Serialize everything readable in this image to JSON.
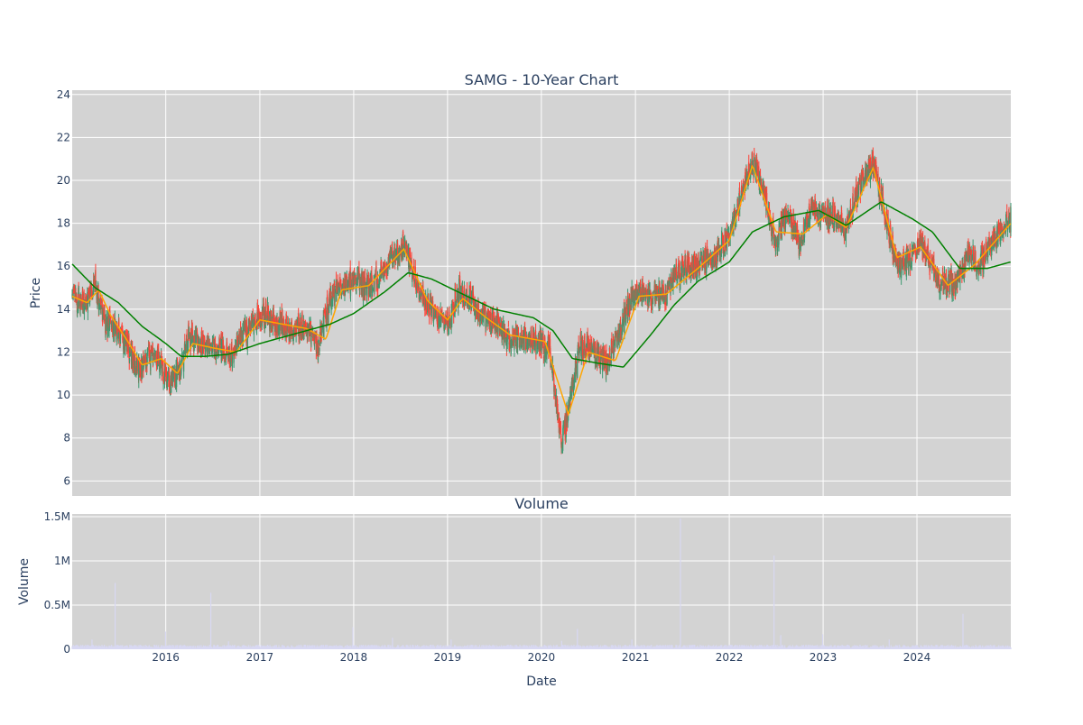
{
  "chart_data": [
    {
      "type": "candlestick",
      "title": "SAMG - 10-Year Chart",
      "ylabel": "Price",
      "ylim": [
        5.3,
        24.2
      ],
      "yticks": [
        6,
        8,
        10,
        12,
        14,
        16,
        18,
        20,
        22,
        24
      ],
      "x_range": [
        "2015-01-02",
        "2024-12-31"
      ],
      "xticks": [
        "2016",
        "2017",
        "2018",
        "2019",
        "2020",
        "2021",
        "2022",
        "2023",
        "2024"
      ],
      "increasing_color": "#3d9970",
      "decreasing_color": "#ff4136",
      "grid": true,
      "plot_background": "#d3d3d3",
      "close_anchors": [
        [
          "2015-01-02",
          14.6
        ],
        [
          "2015-02-15",
          14.2
        ],
        [
          "2015-04-01",
          15.1
        ],
        [
          "2015-05-15",
          13.3
        ],
        [
          "2015-07-15",
          12.8
        ],
        [
          "2015-09-15",
          11.2
        ],
        [
          "2015-11-15",
          12.0
        ],
        [
          "2016-01-15",
          10.6
        ],
        [
          "2016-03-01",
          11.4
        ],
        [
          "2016-04-01",
          12.8
        ],
        [
          "2016-06-01",
          12.3
        ],
        [
          "2016-08-01",
          12.1
        ],
        [
          "2016-09-15",
          11.8
        ],
        [
          "2016-10-15",
          12.6
        ],
        [
          "2016-12-01",
          13.2
        ],
        [
          "2017-01-15",
          13.8
        ],
        [
          "2017-03-01",
          13.4
        ],
        [
          "2017-05-01",
          13.0
        ],
        [
          "2017-07-01",
          13.2
        ],
        [
          "2017-08-15",
          12.3
        ],
        [
          "2017-10-01",
          14.6
        ],
        [
          "2017-12-01",
          15.3
        ],
        [
          "2018-01-15",
          15.2
        ],
        [
          "2018-03-01",
          15.0
        ],
        [
          "2018-04-15",
          15.6
        ],
        [
          "2018-06-01",
          16.4
        ],
        [
          "2018-07-15",
          17.0
        ],
        [
          "2018-09-01",
          15.4
        ],
        [
          "2018-10-15",
          14.2
        ],
        [
          "2018-12-01",
          13.7
        ],
        [
          "2019-01-01",
          13.2
        ],
        [
          "2019-02-15",
          14.8
        ],
        [
          "2019-04-01",
          14.4
        ],
        [
          "2019-05-15",
          13.6
        ],
        [
          "2019-07-01",
          13.4
        ],
        [
          "2019-08-15",
          12.7
        ],
        [
          "2019-10-15",
          12.6
        ],
        [
          "2019-12-01",
          12.5
        ],
        [
          "2020-02-01",
          12.2
        ],
        [
          "2020-03-20",
          7.8
        ],
        [
          "2020-04-15",
          9.4
        ],
        [
          "2020-06-01",
          12.3
        ],
        [
          "2020-07-15",
          12.1
        ],
        [
          "2020-09-15",
          11.6
        ],
        [
          "2020-11-01",
          12.8
        ],
        [
          "2020-12-01",
          14.2
        ],
        [
          "2021-01-15",
          14.9
        ],
        [
          "2021-03-01",
          14.5
        ],
        [
          "2021-05-01",
          14.8
        ],
        [
          "2021-06-01",
          15.6
        ],
        [
          "2021-07-15",
          15.9
        ],
        [
          "2021-09-01",
          16.0
        ],
        [
          "2021-11-01",
          16.5
        ],
        [
          "2022-01-01",
          17.4
        ],
        [
          "2022-02-15",
          19.2
        ],
        [
          "2022-04-01",
          21.0
        ],
        [
          "2022-05-15",
          19.3
        ],
        [
          "2022-07-01",
          17.1
        ],
        [
          "2022-08-15",
          18.6
        ],
        [
          "2022-10-01",
          17.0
        ],
        [
          "2022-11-15",
          18.7
        ],
        [
          "2023-01-01",
          18.5
        ],
        [
          "2023-02-15",
          18.3
        ],
        [
          "2023-04-01",
          17.6
        ],
        [
          "2023-05-15",
          19.6
        ],
        [
          "2023-07-15",
          20.9
        ],
        [
          "2023-09-15",
          17.6
        ],
        [
          "2023-10-15",
          16.1
        ],
        [
          "2023-12-01",
          16.3
        ],
        [
          "2024-01-15",
          17.1
        ],
        [
          "2024-02-15",
          16.5
        ],
        [
          "2024-04-01",
          15.2
        ],
        [
          "2024-06-01",
          15.1
        ],
        [
          "2024-07-15",
          16.6
        ],
        [
          "2024-09-01",
          16.0
        ],
        [
          "2024-10-15",
          17.2
        ],
        [
          "2024-12-31",
          18.2
        ]
      ],
      "moving_averages": [
        {
          "color": "#ffa500",
          "values": [
            [
              "2015-01-02",
              14.6
            ],
            [
              "2015-03-01",
              14.3
            ],
            [
              "2015-04-15",
              14.9
            ],
            [
              "2015-06-01",
              13.7
            ],
            [
              "2015-08-01",
              12.6
            ],
            [
              "2015-10-01",
              11.4
            ],
            [
              "2015-12-15",
              11.7
            ],
            [
              "2016-02-15",
              11.0
            ],
            [
              "2016-04-15",
              12.4
            ],
            [
              "2016-07-01",
              12.2
            ],
            [
              "2016-10-01",
              12.0
            ],
            [
              "2017-01-01",
              13.5
            ],
            [
              "2017-04-01",
              13.3
            ],
            [
              "2017-07-01",
              13.1
            ],
            [
              "2017-09-15",
              12.6
            ],
            [
              "2017-11-15",
              14.9
            ],
            [
              "2018-03-01",
              15.1
            ],
            [
              "2018-07-15",
              16.8
            ],
            [
              "2018-10-15",
              14.4
            ],
            [
              "2019-01-01",
              13.5
            ],
            [
              "2019-03-01",
              14.5
            ],
            [
              "2019-06-01",
              13.6
            ],
            [
              "2019-09-01",
              12.8
            ],
            [
              "2020-01-15",
              12.5
            ],
            [
              "2020-04-15",
              9.1
            ],
            [
              "2020-07-01",
              12.0
            ],
            [
              "2020-10-15",
              11.6
            ],
            [
              "2021-01-15",
              14.6
            ],
            [
              "2021-05-01",
              14.7
            ],
            [
              "2021-09-01",
              15.9
            ],
            [
              "2022-01-01",
              17.2
            ],
            [
              "2022-04-01",
              20.7
            ],
            [
              "2022-07-01",
              17.6
            ],
            [
              "2022-10-15",
              17.5
            ],
            [
              "2023-01-15",
              18.4
            ],
            [
              "2023-04-01",
              17.8
            ],
            [
              "2023-07-15",
              20.6
            ],
            [
              "2023-10-15",
              16.4
            ],
            [
              "2024-01-15",
              16.9
            ],
            [
              "2024-05-01",
              15.1
            ],
            [
              "2024-08-15",
              16.1
            ],
            [
              "2024-12-31",
              18.0
            ]
          ]
        },
        {
          "color": "#008000",
          "values": [
            [
              "2015-01-02",
              16.1
            ],
            [
              "2015-04-01",
              15.0
            ],
            [
              "2015-07-01",
              14.3
            ],
            [
              "2015-10-01",
              13.2
            ],
            [
              "2016-01-01",
              12.4
            ],
            [
              "2016-03-01",
              11.8
            ],
            [
              "2016-06-01",
              11.8
            ],
            [
              "2016-09-01",
              11.9
            ],
            [
              "2017-01-01",
              12.4
            ],
            [
              "2017-06-01",
              12.9
            ],
            [
              "2017-10-01",
              13.3
            ],
            [
              "2018-01-01",
              13.8
            ],
            [
              "2018-05-01",
              14.8
            ],
            [
              "2018-08-01",
              15.7
            ],
            [
              "2018-11-01",
              15.4
            ],
            [
              "2019-03-01",
              14.7
            ],
            [
              "2019-07-01",
              14.0
            ],
            [
              "2019-12-01",
              13.6
            ],
            [
              "2020-02-15",
              13.0
            ],
            [
              "2020-05-01",
              11.7
            ],
            [
              "2020-08-01",
              11.5
            ],
            [
              "2020-11-15",
              11.3
            ],
            [
              "2021-03-01",
              12.8
            ],
            [
              "2021-06-01",
              14.2
            ],
            [
              "2021-09-01",
              15.3
            ],
            [
              "2022-01-01",
              16.2
            ],
            [
              "2022-04-01",
              17.6
            ],
            [
              "2022-08-01",
              18.3
            ],
            [
              "2022-12-15",
              18.6
            ],
            [
              "2023-04-01",
              17.9
            ],
            [
              "2023-08-15",
              19.0
            ],
            [
              "2023-12-15",
              18.2
            ],
            [
              "2024-03-01",
              17.6
            ],
            [
              "2024-06-15",
              15.9
            ],
            [
              "2024-10-01",
              15.9
            ],
            [
              "2024-12-31",
              16.2
            ]
          ]
        }
      ]
    },
    {
      "type": "bar",
      "title": "Volume",
      "ylabel": "Volume",
      "xlabel": "Date",
      "ylim": [
        0,
        1530000
      ],
      "yticks": [
        0,
        500000,
        1000000,
        1500000
      ],
      "ytick_labels": [
        "0",
        "0.5M",
        "1M",
        "1.5M"
      ],
      "xticks": [
        "2016",
        "2017",
        "2018",
        "2019",
        "2020",
        "2021",
        "2022",
        "2023",
        "2024"
      ],
      "bar_color": "#d8d8f2",
      "typical_volume": 30000,
      "spikes": [
        [
          "2015-01-10",
          100000
        ],
        [
          "2015-03-20",
          110000
        ],
        [
          "2015-06-18",
          750000
        ],
        [
          "2015-12-31",
          200000
        ],
        [
          "2016-06-24",
          640000
        ],
        [
          "2016-09-01",
          90000
        ],
        [
          "2017-12-29",
          250000
        ],
        [
          "2018-06-01",
          130000
        ],
        [
          "2019-01-15",
          110000
        ],
        [
          "2020-03-20",
          95000
        ],
        [
          "2020-05-20",
          230000
        ],
        [
          "2020-12-18",
          110000
        ],
        [
          "2021-06-25",
          1480000
        ],
        [
          "2021-05-15",
          120000
        ],
        [
          "2022-06-24",
          1060000
        ],
        [
          "2022-07-20",
          160000
        ],
        [
          "2022-12-30",
          170000
        ],
        [
          "2023-09-15",
          110000
        ],
        [
          "2024-06-28",
          400000
        ]
      ]
    }
  ]
}
